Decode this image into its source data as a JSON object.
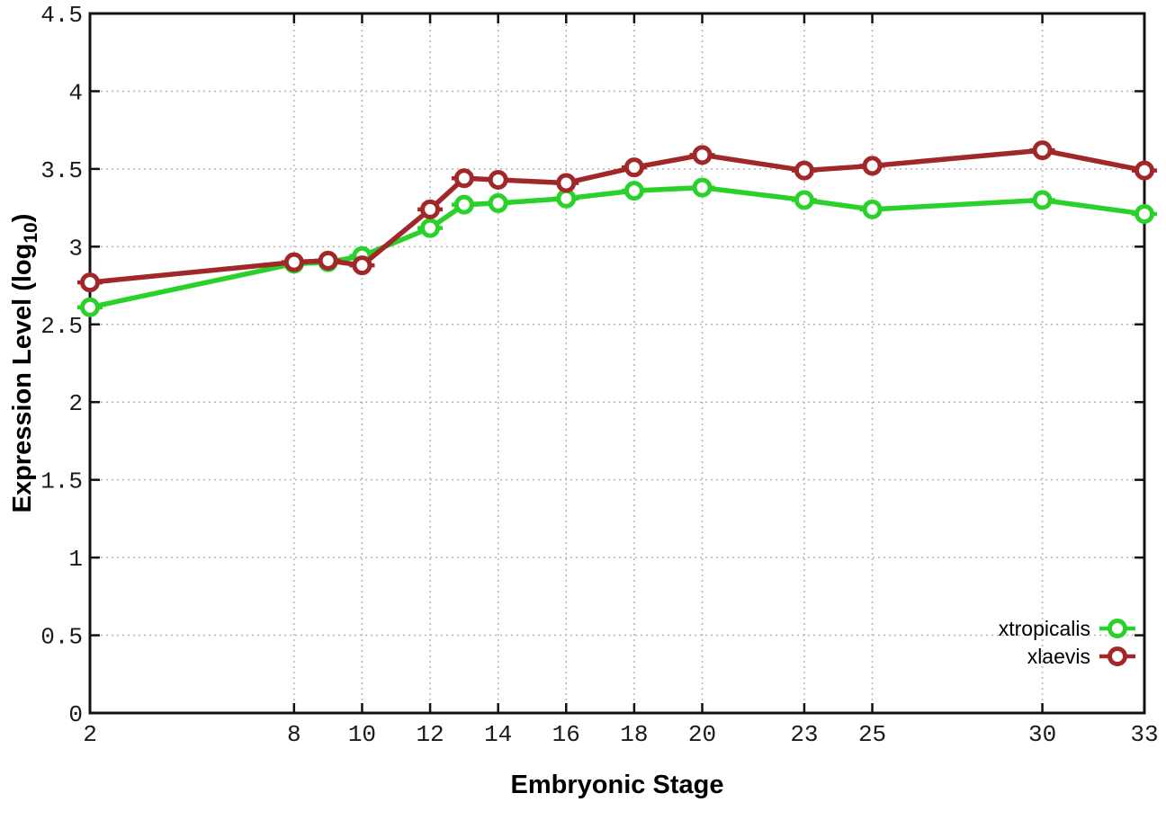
{
  "chart_data": {
    "type": "line",
    "title": "",
    "xlabel": "Embryonic Stage",
    "ylabel": {
      "prefix": "Expression Level (log",
      "subscript": "10",
      "suffix": ")"
    },
    "x": [
      2,
      8,
      9,
      10,
      12,
      13,
      14,
      16,
      18,
      20,
      23,
      25,
      30,
      33
    ],
    "series": [
      {
        "name": "xtropicalis",
        "color": "#2bd12b",
        "values": [
          2.61,
          2.89,
          2.9,
          2.94,
          3.12,
          3.27,
          3.28,
          3.31,
          3.36,
          3.38,
          3.3,
          3.24,
          3.3,
          3.21
        ]
      },
      {
        "name": "xlaevis",
        "color": "#a02828",
        "values": [
          2.77,
          2.9,
          2.91,
          2.88,
          3.24,
          3.44,
          3.43,
          3.41,
          3.51,
          3.59,
          3.49,
          3.52,
          3.62,
          3.49
        ]
      }
    ],
    "xlim": [
      2,
      33
    ],
    "ylim": [
      0,
      4.5
    ],
    "xticks": {
      "values": [
        2,
        8,
        10,
        12,
        14,
        16,
        18,
        20,
        23,
        25,
        30,
        33
      ],
      "labels": [
        "2",
        "8",
        "10",
        "12",
        "14",
        "16",
        "18",
        "20",
        "23",
        "25",
        "30",
        "33"
      ]
    },
    "yticks": {
      "values": [
        0,
        0.5,
        1,
        1.5,
        2,
        2.5,
        3,
        3.5,
        4,
        4.5
      ],
      "labels": [
        "0",
        "0.5",
        "1",
        "1.5",
        "2",
        "2.5",
        "3",
        "3.5",
        "4",
        "4.5"
      ]
    },
    "grid": true,
    "legend_position": "bottom-right",
    "legend": [
      "xtropicalis",
      "xlaevis"
    ],
    "marker": "open-circle-with-error-bar",
    "colors": {
      "grid": "#b5b5b5",
      "border": "#111111",
      "background": "#ffffff"
    }
  }
}
